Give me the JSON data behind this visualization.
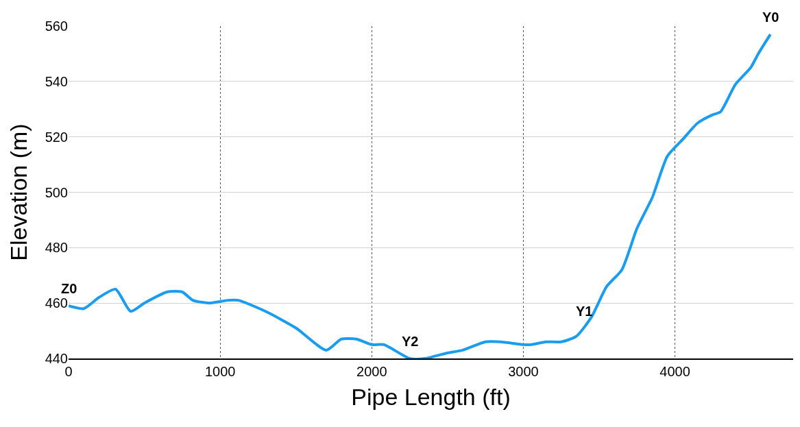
{
  "chart_data": {
    "type": "line",
    "xlabel": "Pipe Length (ft)",
    "ylabel": "Elevation (m)",
    "x": [
      0,
      100,
      200,
      310,
      410,
      500,
      650,
      750,
      820,
      930,
      1050,
      1120,
      1300,
      1500,
      1700,
      1800,
      1900,
      2000,
      2080,
      2250,
      2350,
      2500,
      2600,
      2750,
      2850,
      3000,
      3050,
      3150,
      3250,
      3350,
      3450,
      3550,
      3650,
      3750,
      3850,
      3950,
      4050,
      4150,
      4250,
      4300,
      4400,
      4500,
      4550,
      4630
    ],
    "series": [
      {
        "color": "#1a9cf0",
        "values": [
          459,
          458,
          462,
          465,
          457,
          460,
          464,
          464,
          461,
          460,
          461,
          461,
          457,
          451,
          443,
          447,
          447,
          445,
          445,
          440,
          440,
          442,
          443,
          446,
          446,
          445,
          445,
          446,
          446,
          448,
          455,
          466,
          472,
          487,
          498,
          513,
          519,
          525,
          528,
          529,
          539,
          545,
          550,
          557
        ]
      }
    ],
    "xlim": [
      0,
      4780
    ],
    "xticks": [
      0,
      1000,
      2000,
      3000,
      4000
    ],
    "ylim": [
      440,
      560
    ],
    "yticks": [
      440,
      460,
      480,
      500,
      520,
      540,
      560
    ],
    "grid": true,
    "legend": false,
    "marker": "none",
    "line_style": "solid",
    "annotations": [
      {
        "text": "Z0",
        "x": 0,
        "y": 459
      },
      {
        "text": "Y2",
        "x": 2250,
        "y": 440
      },
      {
        "text": "Y1",
        "x": 3400,
        "y": 451
      },
      {
        "text": "Y0",
        "x": 4630,
        "y": 557
      }
    ]
  }
}
